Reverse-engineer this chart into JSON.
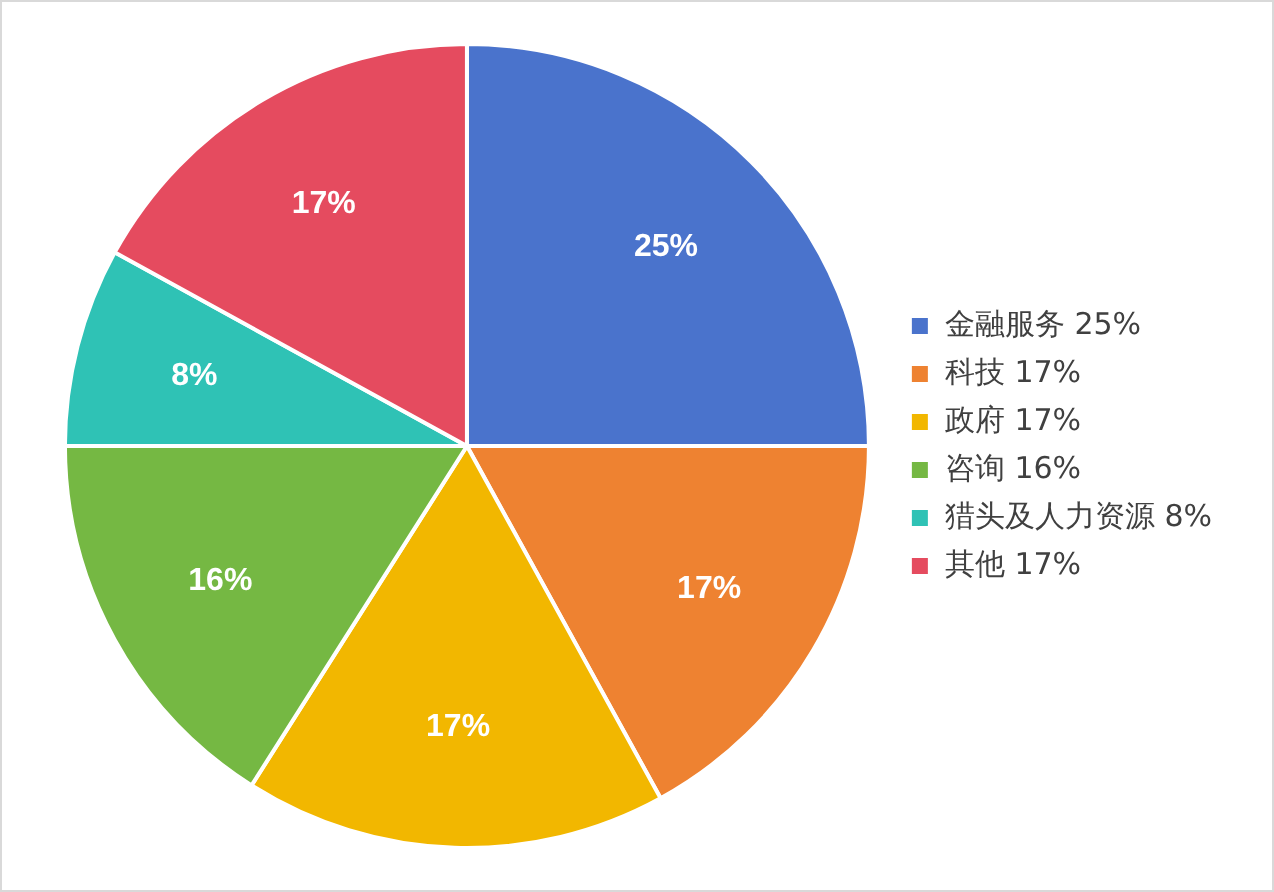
{
  "chart_data": {
    "type": "pie",
    "categories": [
      "金融服务 25%",
      "科技 17%",
      "政府 17%",
      "咨询 16%",
      "猎头及人力资源 8%",
      "其他 17%"
    ],
    "values": [
      25,
      17,
      17,
      16,
      8,
      17
    ],
    "colors": [
      "#4a73cc",
      "#ee8231",
      "#f2b700",
      "#75b843",
      "#2fc2b5",
      "#e54b5f"
    ],
    "value_labels": [
      "25%",
      "17%",
      "17%",
      "16%",
      "8%",
      "17%"
    ],
    "legend": "right"
  }
}
